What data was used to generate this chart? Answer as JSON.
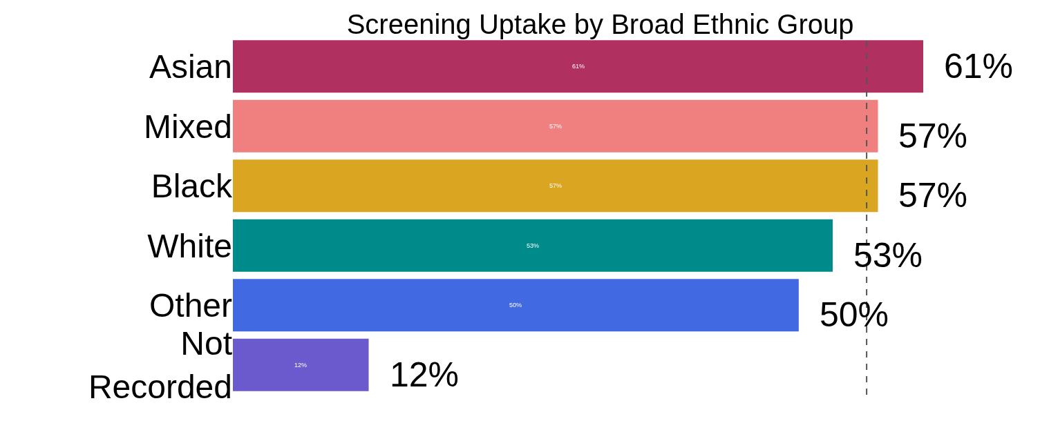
{
  "chart_data": {
    "type": "bar",
    "orientation": "horizontal",
    "title": "Screening Uptake by Broad Ethnic Group",
    "categories": [
      "Asian",
      "Mixed",
      "Black",
      "White",
      "Other",
      "Not Recorded"
    ],
    "values": [
      61,
      57,
      57,
      53,
      50,
      12
    ],
    "colors": [
      "#b03060",
      "#f08080",
      "#daa520",
      "#008b8b",
      "#4169e1",
      "#6a5acd"
    ],
    "value_labels": [
      "61%",
      "57%",
      "57%",
      "53%",
      "50%",
      "12%"
    ],
    "tick_labels": "y",
    "ref_lines": [
      {
        "axis": "x",
        "value": 56,
        "line_style": "dashed",
        "color": "#555555"
      }
    ]
  }
}
